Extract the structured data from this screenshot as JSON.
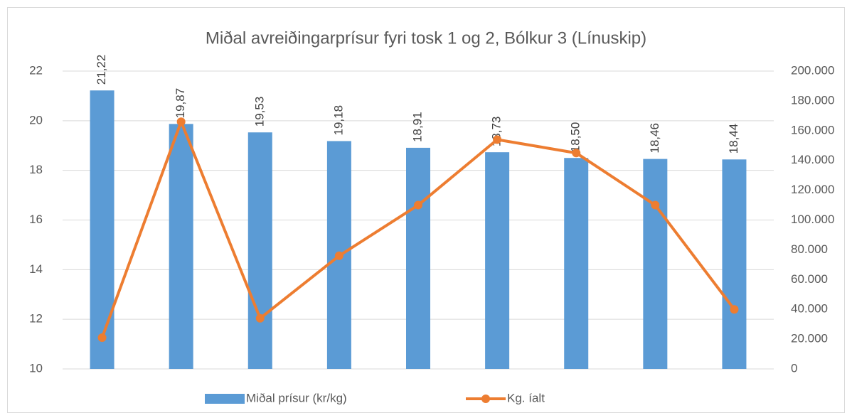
{
  "chart_data": {
    "type": "bar_line",
    "title": "Miðal avreiðingarprísur fyri tosk 1 og 2, Bólkur 3 (Línuskip)",
    "categories": [
      null,
      null,
      null,
      null,
      null,
      null,
      null,
      null,
      null
    ],
    "series": [
      {
        "name": "Miðal prísur (kr/kg)",
        "type": "bar",
        "color": "#5b9bd5",
        "values": [
          21.22,
          19.87,
          19.53,
          19.18,
          18.91,
          18.73,
          18.5,
          18.46,
          18.44
        ],
        "value_labels": [
          "21,22",
          "19,87",
          "19,53",
          "19,18",
          "18,91",
          "18,73",
          "18,50",
          "18,46",
          "18,44"
        ]
      },
      {
        "name": "Kg. íalt",
        "type": "line",
        "axis": "y2",
        "color": "#ed7d31",
        "values": [
          21000,
          166000,
          34000,
          76000,
          110000,
          154000,
          145000,
          110000,
          40000
        ]
      }
    ],
    "ylim": [
      10,
      22
    ],
    "yticks": [
      10,
      12,
      14,
      16,
      18,
      20,
      22
    ],
    "y2lim": [
      0,
      200000
    ],
    "y2ticks": [
      0,
      {
        "value": 20000,
        "label": "20.000"
      },
      {
        "value": 40000,
        "label": "40.000"
      },
      {
        "value": 60000,
        "label": "60.000"
      },
      {
        "value": 80000,
        "label": "80.000"
      },
      {
        "value": 100000,
        "label": "100.000"
      },
      {
        "value": 120000,
        "label": "120.000"
      },
      {
        "value": 140000,
        "label": "140.000"
      },
      {
        "value": 160000,
        "label": "160.000"
      },
      {
        "value": 180000,
        "label": "180.000"
      },
      {
        "value": 200000,
        "label": "200.000"
      }
    ],
    "grid": true,
    "legend": "bottom"
  }
}
